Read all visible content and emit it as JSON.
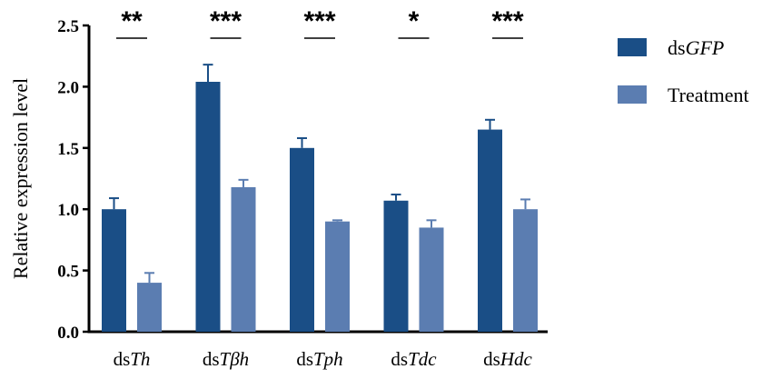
{
  "chart_data": {
    "type": "bar",
    "categories": [
      {
        "prefix": "ds",
        "gene": "Th"
      },
      {
        "prefix": "ds",
        "gene": "Tβh"
      },
      {
        "prefix": "ds",
        "gene": "Tph"
      },
      {
        "prefix": "ds",
        "gene": "Tdc"
      },
      {
        "prefix": "ds",
        "gene": "Hdc"
      }
    ],
    "series": [
      {
        "name_prefix": "ds",
        "name_italic": "GFP",
        "color": "#1a4e86",
        "values": [
          1.0,
          2.04,
          1.5,
          1.07,
          1.65
        ],
        "errors": [
          0.09,
          0.14,
          0.08,
          0.05,
          0.08
        ]
      },
      {
        "name_prefix": "",
        "name_italic": "",
        "name": "Treatment",
        "color": "#5b7db1",
        "values": [
          0.4,
          1.18,
          0.9,
          0.85,
          1.0
        ],
        "errors": [
          0.08,
          0.06,
          0.01,
          0.06,
          0.08
        ]
      }
    ],
    "significance": [
      "**",
      "***",
      "***",
      "*",
      "***"
    ],
    "ylabel": "Relative expression level",
    "ylim": [
      0.0,
      2.5
    ],
    "yticks": [
      "0.0",
      "0.5",
      "1.0",
      "1.5",
      "2.0",
      "2.5"
    ],
    "grid": false,
    "legend_position": "right"
  }
}
